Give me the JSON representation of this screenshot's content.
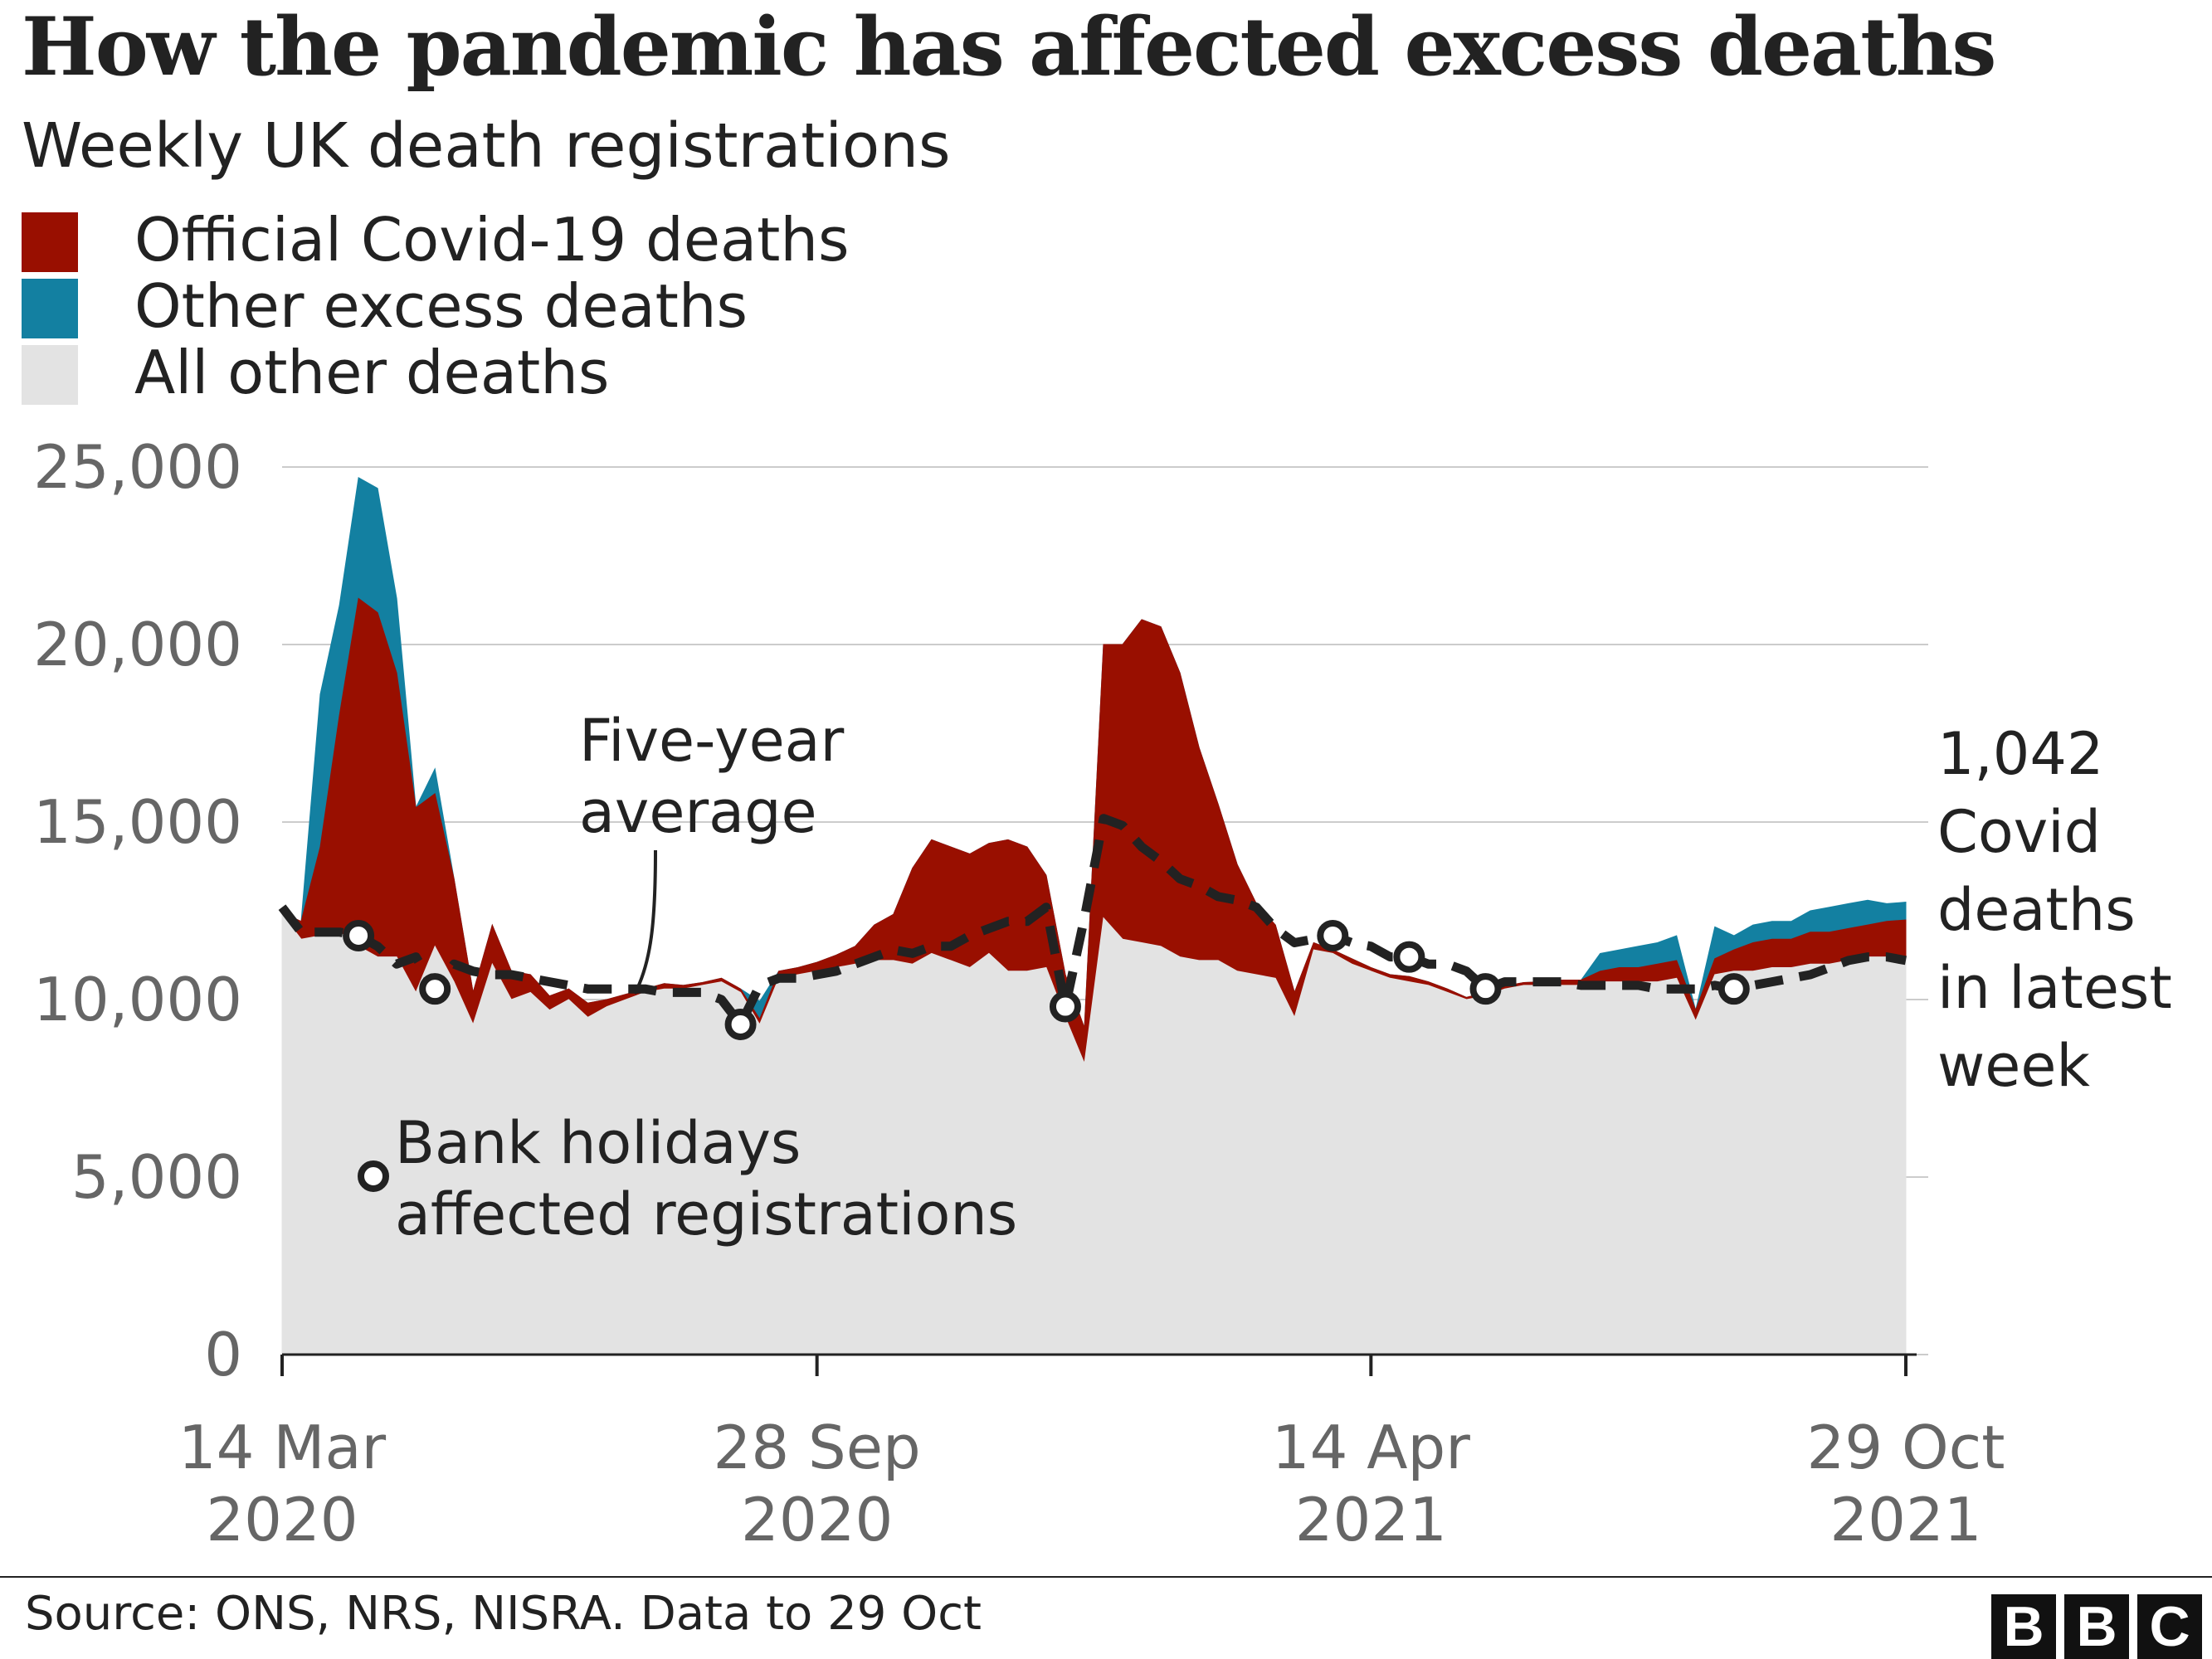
{
  "chart_data": {
    "type": "area",
    "title": "How the pandemic has affected excess deaths",
    "subtitle": "Weekly UK death registrations",
    "source": "Source: ONS, NRS, NISRA. Data to 29 Oct",
    "logo": "BBC",
    "legend": {
      "placement": "top-left",
      "items": [
        {
          "label": "Official Covid-19 deaths",
          "color": "#990f00"
        },
        {
          "label": "Other excess deaths",
          "color": "#1380a1"
        },
        {
          "label": "All other deaths",
          "color": "#e3e3e3"
        }
      ]
    },
    "x_ticks": [
      {
        "line1": "14 Mar",
        "line2": "2020"
      },
      {
        "line1": "28 Sep",
        "line2": "2020"
      },
      {
        "line1": "14 Apr",
        "line2": "2021"
      },
      {
        "line1": "29 Oct",
        "line2": "2021"
      }
    ],
    "y_ticks": [
      "0",
      "5,000",
      "10,000",
      "15,000",
      "20,000",
      "25,000"
    ],
    "ylim": [
      0,
      25000
    ],
    "grid": true,
    "annotations": {
      "five_year_average": [
        "Five-year",
        "average"
      ],
      "bank_holidays": [
        "Bank holidays",
        "affected registrations"
      ],
      "latest_week": [
        "1,042",
        "Covid",
        "deaths",
        "in latest",
        "week"
      ]
    },
    "weeks": [
      "2020-03-14",
      "2020-03-21",
      "2020-03-28",
      "2020-04-04",
      "2020-04-11",
      "2020-04-18",
      "2020-04-25",
      "2020-05-02",
      "2020-05-09",
      "2020-05-16",
      "2020-05-23",
      "2020-05-30",
      "2020-06-06",
      "2020-06-13",
      "2020-06-20",
      "2020-06-27",
      "2020-07-04",
      "2020-07-11",
      "2020-07-18",
      "2020-07-25",
      "2020-08-01",
      "2020-08-08",
      "2020-08-15",
      "2020-08-22",
      "2020-08-29",
      "2020-09-05",
      "2020-09-12",
      "2020-09-19",
      "2020-09-26",
      "2020-10-03",
      "2020-10-10",
      "2020-10-17",
      "2020-10-24",
      "2020-10-31",
      "2020-11-07",
      "2020-11-14",
      "2020-11-21",
      "2020-11-28",
      "2020-12-05",
      "2020-12-12",
      "2020-12-19",
      "2020-12-26",
      "2021-01-02",
      "2021-01-09",
      "2021-01-16",
      "2021-01-23",
      "2021-01-30",
      "2021-02-06",
      "2021-02-13",
      "2021-02-20",
      "2021-02-27",
      "2021-03-06",
      "2021-03-13",
      "2021-03-20",
      "2021-03-27",
      "2021-04-03",
      "2021-04-10",
      "2021-04-17",
      "2021-04-24",
      "2021-05-01",
      "2021-05-08",
      "2021-05-15",
      "2021-05-22",
      "2021-05-29",
      "2021-06-05",
      "2021-06-12",
      "2021-06-19",
      "2021-06-26",
      "2021-07-03",
      "2021-07-10",
      "2021-07-17",
      "2021-07-24",
      "2021-07-31",
      "2021-08-07",
      "2021-08-14",
      "2021-08-21",
      "2021-08-28",
      "2021-09-04",
      "2021-09-11",
      "2021-09-18",
      "2021-09-25",
      "2021-10-02",
      "2021-10-09",
      "2021-10-16",
      "2021-10-23",
      "2021-10-30"
    ],
    "series": [
      {
        "name": "All other deaths",
        "values": [
          12400,
          11700,
          11800,
          11900,
          11500,
          11200,
          11200,
          10200,
          11500,
          10500,
          9300,
          11000,
          10000,
          10200,
          9700,
          10000,
          9500,
          9800,
          10000,
          10200,
          10300,
          10300,
          10400,
          10500,
          10200,
          9300,
          10600,
          10700,
          10800,
          10900,
          11000,
          11100,
          11100,
          11000,
          11300,
          11100,
          10900,
          11300,
          10800,
          10800,
          10900,
          9500,
          8200,
          12300,
          11700,
          11600,
          11500,
          11200,
          11100,
          11100,
          10800,
          10700,
          10600,
          9500,
          11400,
          11300,
          11000,
          10800,
          10600,
          10500,
          10400,
          10200,
          10000,
          10100,
          10300,
          10400,
          10400,
          10400,
          10400,
          10500,
          10500,
          10500,
          10500,
          10600,
          9400,
          10700,
          10800,
          10800,
          10900,
          10900,
          11000,
          11000,
          11100,
          11200,
          11200,
          11200
        ]
      },
      {
        "name": "Official Covid-19 deaths",
        "values": [
          50,
          500,
          2500,
          6100,
          9800,
          9700,
          8000,
          5200,
          4300,
          2900,
          900,
          1100,
          800,
          500,
          400,
          300,
          400,
          200,
          150,
          100,
          150,
          100,
          80,
          100,
          100,
          150,
          200,
          200,
          250,
          350,
          500,
          1000,
          1300,
          2700,
          3200,
          3200,
          3200,
          3100,
          3700,
          3500,
          2600,
          1200,
          1000,
          7700,
          8300,
          9100,
          9000,
          8000,
          6000,
          4400,
          3000,
          2000,
          1500,
          700,
          200,
          100,
          150,
          100,
          100,
          150,
          100,
          100,
          60,
          100,
          80,
          80,
          100,
          150,
          150,
          300,
          400,
          400,
          500,
          500,
          300,
          450,
          600,
          800,
          800,
          800,
          900,
          900,
          900,
          900,
          1000,
          1042
        ]
      },
      {
        "name": "Other excess deaths",
        "values": [
          0,
          0,
          4300,
          3100,
          3400,
          3500,
          2100,
          0,
          700,
          0,
          0,
          0,
          0,
          0,
          0,
          0,
          0,
          0,
          0,
          0,
          0,
          0,
          0,
          0,
          0,
          500,
          0,
          0,
          0,
          0,
          0,
          0,
          0,
          0,
          0,
          0,
          0,
          0,
          0,
          0,
          0,
          0,
          0,
          0,
          0,
          0,
          0,
          0,
          0,
          0,
          0,
          0,
          0,
          0,
          0,
          0,
          0,
          0,
          0,
          0,
          0,
          0,
          0,
          0,
          0,
          0,
          0,
          0,
          0,
          500,
          500,
          600,
          600,
          700,
          0,
          900,
          400,
          500,
          500,
          500,
          600,
          700,
          700,
          700,
          500,
          500
        ]
      },
      {
        "name": "Five-year average",
        "values": [
          12600,
          11900,
          11900,
          11900,
          11800,
          11500,
          11000,
          11200,
          10300,
          11000,
          10800,
          10700,
          10700,
          10600,
          10500,
          10400,
          10300,
          10300,
          10300,
          10300,
          10200,
          10200,
          10200,
          10000,
          9300,
          10400,
          10600,
          10600,
          10700,
          10800,
          11000,
          11200,
          11400,
          11300,
          11500,
          11500,
          11800,
          12000,
          12200,
          12200,
          12600,
          9800,
          12300,
          15100,
          14900,
          14300,
          13900,
          13400,
          13200,
          12900,
          12800,
          12600,
          12000,
          11600,
          11700,
          11800,
          11600,
          11500,
          11200,
          11200,
          11000,
          11000,
          10800,
          10300,
          10500,
          10500,
          10500,
          10500,
          10400,
          10400,
          10400,
          10400,
          10300,
          10300,
          10300,
          10400,
          10300,
          10400,
          10500,
          10600,
          10700,
          10900,
          11100,
          11200,
          11200,
          11100
        ]
      }
    ],
    "bank_holiday_weeks": [
      "2020-04-11",
      "2020-05-09",
      "2020-08-29",
      "2020-12-26",
      "2021-04-03",
      "2021-05-01",
      "2021-05-29",
      "2021-08-28"
    ]
  }
}
